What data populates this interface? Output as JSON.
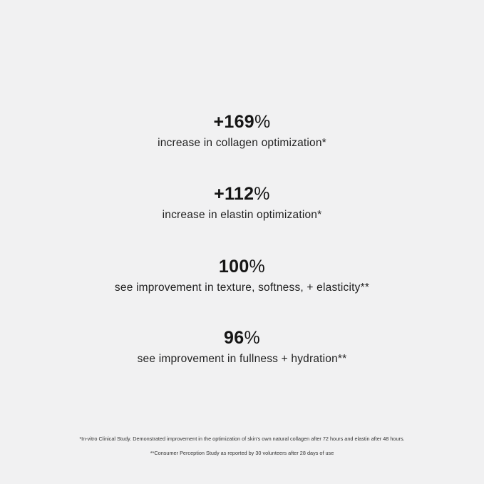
{
  "stats": [
    {
      "value": "+169",
      "unit": "%",
      "label": "increase in collagen optimization*"
    },
    {
      "value": "+112",
      "unit": "%",
      "label": "increase in elastin optimization*"
    },
    {
      "value": "100",
      "unit": "%",
      "label": "see improvement in texture, softness, + elasticity**"
    },
    {
      "value": "96",
      "unit": "%",
      "label": "see improvement in fullness + hydration**"
    }
  ],
  "footnotes": [
    "*In-vitro Clinical Study. Demonstrated improvement in the optimization of skin's own natural collagen after 72 hours and elastin after 48 hours.",
    "**Consumer Perception Study as reported by 30 volunteers after 28 days of use"
  ],
  "colors": {
    "background": "#f1f1f2",
    "text": "#151515"
  }
}
